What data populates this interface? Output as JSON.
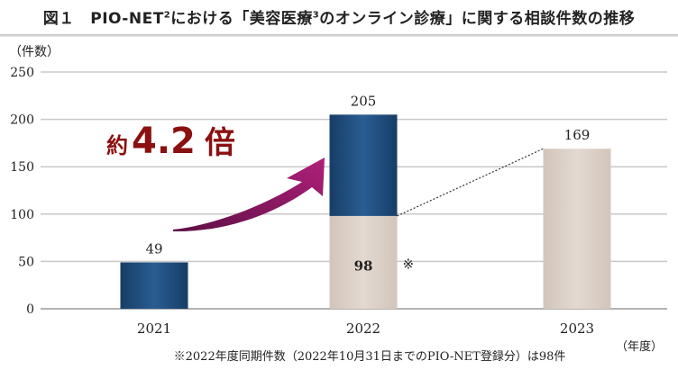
{
  "title": {
    "prefix": "図１　PIO-NET",
    "sup": "2",
    "middle": "における「美容医療",
    "sup2": "3",
    "suffix": "のオンライン診療」に関する相談件数の推移"
  },
  "chart_data": {
    "type": "bar",
    "stacked": true,
    "categories": [
      "2021",
      "2022",
      "2023"
    ],
    "series": [
      {
        "values": [
          49,
          107,
          0
        ],
        "color": "#1f4e7e"
      },
      {
        "values": [
          0,
          98,
          169
        ],
        "color": "#d9cdc4"
      }
    ],
    "totals": [
      49,
      205,
      169
    ],
    "data_labels": [
      "49",
      "205",
      "169",
      "98"
    ],
    "ylabel": "（件数）",
    "xlabel": "（年度）",
    "ylim": [
      0,
      250
    ],
    "yticks": [
      "0",
      "50",
      "100",
      "150",
      "200",
      "250"
    ],
    "grid": true,
    "annotation": "約4.2倍",
    "annotation_number": "4.2",
    "asterisk_mark": "※",
    "footnote": "※2022年度同期件数（2022年10月31日までのPIO-NET登録分）は98件",
    "colors": {
      "blue": "#1f4e7e",
      "beige": "#d9cdc4",
      "arrow": "#9a1a6a",
      "annotation": "#8b1010"
    }
  }
}
